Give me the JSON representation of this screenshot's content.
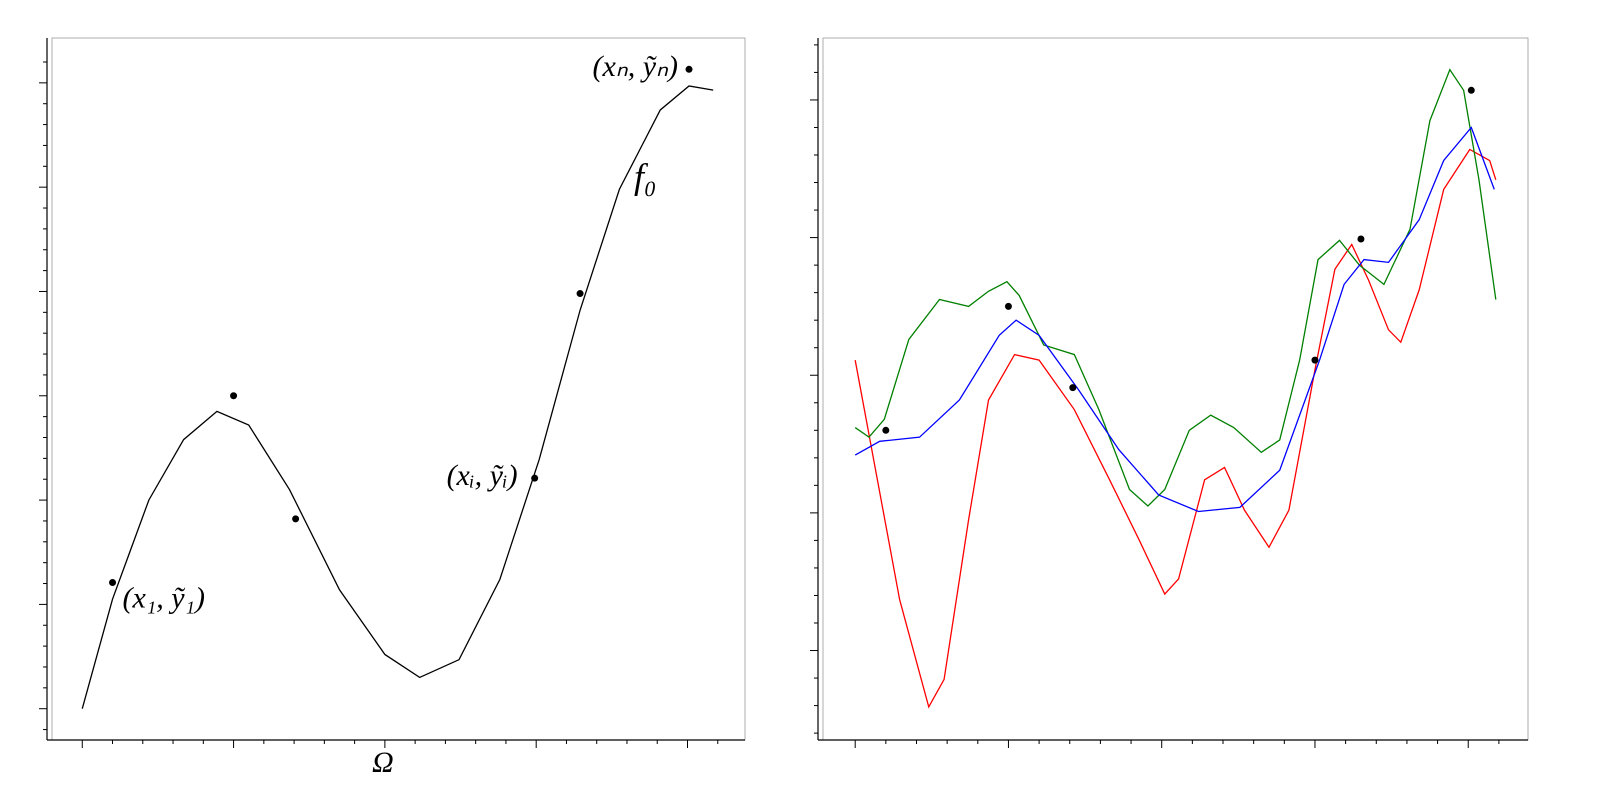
{
  "chart_data": [
    {
      "type": "line",
      "xlim": [
        -0.2,
        4.38
      ],
      "ylim": [
        -0.3,
        6.43
      ],
      "xticks": [
        0,
        1,
        2,
        3,
        4
      ],
      "xminorticks": [
        0.2,
        0.4,
        0.6,
        0.8,
        1.2,
        1.4,
        1.6,
        1.8,
        2.2,
        2.4,
        2.6,
        2.8,
        3.2,
        3.4,
        3.6,
        3.8,
        4.2
      ],
      "yticks": [
        0,
        1,
        2,
        3,
        4,
        5,
        6
      ],
      "yminorticks": [
        -0.2,
        0.2,
        0.4,
        0.6,
        0.8,
        1.2,
        1.4,
        1.6,
        1.8,
        2.2,
        2.4,
        2.6,
        2.8,
        3.2,
        3.4,
        3.6,
        3.8,
        4.2,
        4.4,
        4.6,
        4.8,
        5.2,
        5.4,
        5.6,
        5.8,
        6.2
      ],
      "x_label": "Ω",
      "series": [
        {
          "name": "f₀",
          "color": "#000000",
          "x": [
            0,
            0.2,
            0.44,
            0.67,
            0.89,
            1.1,
            1.37,
            1.7,
            2.0,
            2.23,
            2.49,
            2.76,
            3.02,
            3.29,
            3.55,
            3.82,
            4.01,
            4.17
          ],
          "values": [
            0,
            1.05,
            2.0,
            2.58,
            2.85,
            2.72,
            2.1,
            1.14,
            0.52,
            0.3,
            0.47,
            1.24,
            2.39,
            3.82,
            4.98,
            5.74,
            5.97,
            5.93
          ]
        }
      ],
      "points": {
        "color": "#000000",
        "x": [
          0.2,
          1.0,
          1.41,
          2.99,
          3.29,
          4.01
        ],
        "values": [
          1.21,
          3.0,
          1.82,
          2.21,
          3.98,
          6.13
        ],
        "labels": [
          "(x₁, ỹ₁)",
          null,
          null,
          "(xᵢ, ỹᵢ)",
          null,
          "(xₙ, ỹₙ)"
        ]
      }
    },
    {
      "type": "line",
      "xlim": [
        -0.21,
        4.39
      ],
      "ylim": [
        -0.65,
        4.45
      ],
      "xticks": [
        0,
        1,
        2,
        3,
        4
      ],
      "xminorticks": [
        0.2,
        0.4,
        0.6,
        0.8,
        1.2,
        1.4,
        1.6,
        1.8,
        2.2,
        2.4,
        2.6,
        2.8,
        3.2,
        3.4,
        3.6,
        3.8,
        4.2
      ],
      "yticks": [
        0,
        1,
        2,
        3,
        4
      ],
      "yminorticks": [
        -0.6,
        -0.4,
        -0.2,
        0.2,
        0.4,
        0.6,
        0.8,
        1.2,
        1.4,
        1.6,
        1.8,
        2.2,
        2.4,
        2.6,
        2.8,
        3.2,
        3.4,
        3.6,
        3.8,
        4.2,
        4.4
      ],
      "series": [
        {
          "color": "#ff0000",
          "x": [
            0,
            0.12,
            0.29,
            0.48,
            0.58,
            0.74,
            0.87,
            1.04,
            1.2,
            1.43,
            1.66,
            1.85,
            2.02,
            2.11,
            2.28,
            2.41,
            2.54,
            2.7,
            2.83,
            3.0,
            3.13,
            3.24,
            3.35,
            3.48,
            3.56,
            3.68,
            3.84,
            4.01,
            4.14,
            4.18
          ],
          "values": [
            2.11,
            1.39,
            0.37,
            -0.41,
            -0.21,
            0.95,
            1.82,
            2.15,
            2.11,
            1.75,
            1.24,
            0.81,
            0.41,
            0.52,
            1.24,
            1.33,
            1.02,
            0.75,
            1.02,
            2.04,
            2.77,
            2.95,
            2.69,
            2.33,
            2.24,
            2.62,
            3.35,
            3.64,
            3.56,
            3.42
          ]
        },
        {
          "color": "#008000",
          "x": [
            0,
            0.09,
            0.19,
            0.35,
            0.55,
            0.74,
            0.87,
            0.99,
            1.07,
            1.23,
            1.43,
            1.59,
            1.79,
            1.91,
            2.02,
            2.18,
            2.32,
            2.47,
            2.65,
            2.77,
            2.9,
            3.02,
            3.16,
            3.29,
            3.45,
            3.62,
            3.75,
            3.88,
            3.97,
            4.07,
            4.18
          ],
          "values": [
            1.62,
            1.55,
            1.68,
            2.26,
            2.55,
            2.5,
            2.61,
            2.68,
            2.58,
            2.22,
            2.15,
            1.75,
            1.17,
            1.05,
            1.17,
            1.6,
            1.71,
            1.62,
            1.44,
            1.53,
            2.11,
            2.84,
            2.98,
            2.8,
            2.66,
            3.06,
            3.85,
            4.22,
            4.07,
            3.42,
            2.55
          ]
        },
        {
          "color": "#0000ff",
          "x": [
            0,
            0.16,
            0.42,
            0.68,
            0.94,
            1.05,
            1.2,
            1.46,
            1.72,
            1.98,
            2.24,
            2.51,
            2.77,
            3.03,
            3.19,
            3.32,
            3.48,
            3.68,
            3.84,
            4.02,
            4.17
          ],
          "values": [
            1.42,
            1.52,
            1.55,
            1.82,
            2.29,
            2.4,
            2.29,
            1.89,
            1.46,
            1.13,
            1.01,
            1.04,
            1.31,
            2.11,
            2.66,
            2.84,
            2.82,
            3.13,
            3.56,
            3.8,
            3.35
          ]
        }
      ],
      "points": {
        "color": "#000000",
        "x": [
          0.2,
          1.0,
          1.42,
          3.0,
          3.3,
          4.02
        ],
        "values": [
          1.6,
          2.5,
          1.91,
          2.11,
          2.99,
          4.07
        ]
      }
    }
  ]
}
